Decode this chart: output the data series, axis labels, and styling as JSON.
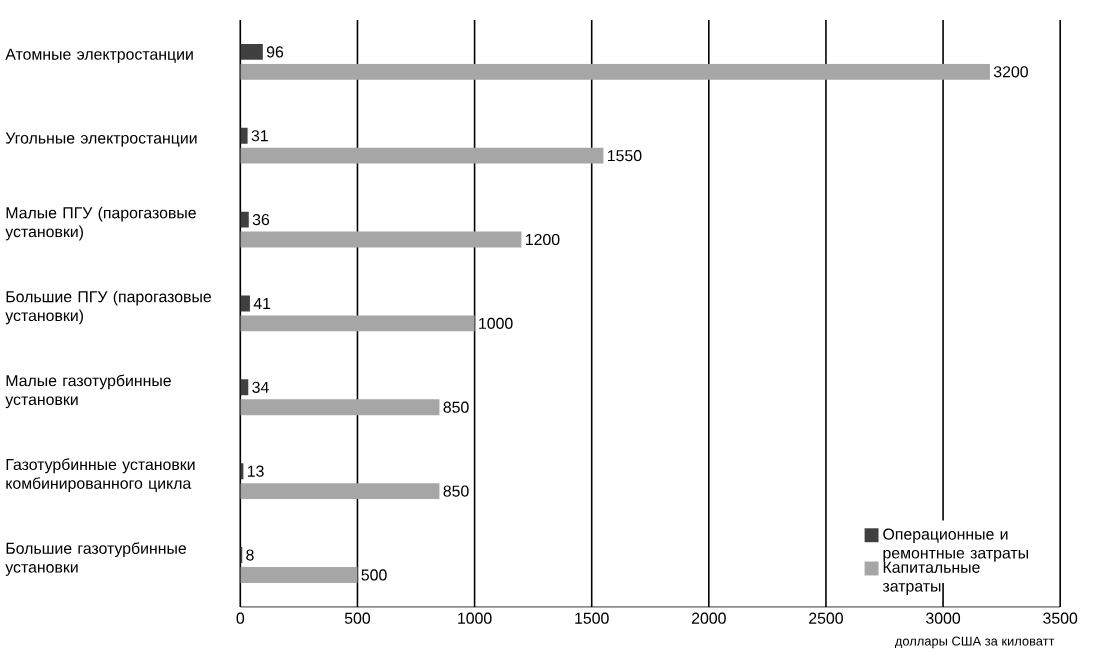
{
  "chart_data": {
    "type": "bar",
    "orientation": "horizontal",
    "xlabel": "доллары США за киловатт",
    "categories": [
      "Атомные электростанции",
      "Угольные электростанции",
      "Малые ПГУ (парогазовые установки)",
      "Большие ПГУ (парогазовые установки)",
      "Малые газотурбинные установки",
      "Газотурбинные установки комбинированного цикла",
      "Большие газотурбинные установки"
    ],
    "series": [
      {
        "name": "Операционные и ремонтные затраты",
        "color": "#404040",
        "values": [
          96,
          31,
          36,
          41,
          34,
          13,
          8
        ]
      },
      {
        "name": "Капитальные затраты",
        "color": "#a6a6a6",
        "values": [
          3200,
          1550,
          1200,
          1000,
          850,
          850,
          500
        ]
      }
    ],
    "xlim": [
      0,
      3500
    ],
    "xticks": [
      0,
      500,
      1000,
      1500,
      2000,
      2500,
      3000,
      3500
    ],
    "grid": "x",
    "legend": "bottom right",
    "data_labels": true
  }
}
